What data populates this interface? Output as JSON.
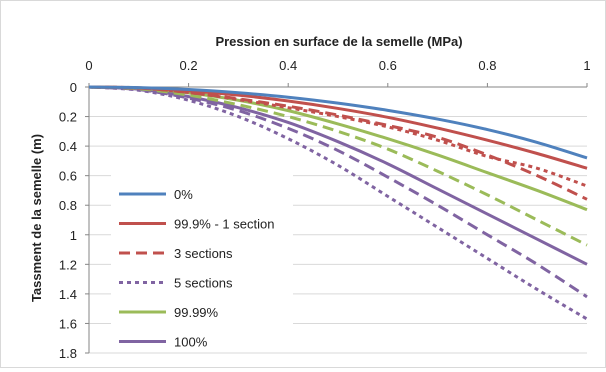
{
  "chart_data": {
    "type": "line",
    "title": "",
    "xlabel": "Pression en surface de la semelle (MPa)",
    "ylabel": "Tassment de la semelle (m)",
    "x_axis_position": "top",
    "y_axis_inverted": true,
    "xlim": [
      0,
      1
    ],
    "ylim": [
      0,
      1.8
    ],
    "x_ticks": [
      0,
      0.2,
      0.4,
      0.6,
      0.8,
      1
    ],
    "x_tick_labels": [
      "0",
      "0.2",
      "0.4",
      "0.6",
      "0.8",
      "1"
    ],
    "y_ticks": [
      0,
      0.2,
      0.4,
      0.6,
      0.8,
      1,
      1.2,
      1.4,
      1.6,
      1.8
    ],
    "y_tick_labels": [
      "0",
      "0.2",
      "0.4",
      "0.6",
      "0.8",
      "1",
      "1.2",
      "1.4",
      "1.6",
      "1.8"
    ],
    "grid": "horizontal",
    "legend_position": "bottom-left",
    "x": [
      0,
      0.1,
      0.2,
      0.3,
      0.4,
      0.5,
      0.6,
      0.7,
      0.8,
      0.9,
      1.0
    ],
    "series": [
      {
        "name": "0%",
        "color": "#4f81bd",
        "dash": "solid",
        "values": [
          0,
          0.004,
          0.017,
          0.039,
          0.069,
          0.109,
          0.158,
          0.217,
          0.288,
          0.375,
          0.48
        ]
      },
      {
        "name": "99.9% - 1 section",
        "color": "#c0504d",
        "dash": "solid",
        "values": [
          0,
          0.005,
          0.026,
          0.055,
          0.095,
          0.145,
          0.205,
          0.278,
          0.36,
          0.45,
          0.55
        ]
      },
      {
        "name": "3 sections",
        "color": "#c0504d",
        "dash": "dashed",
        "values": [
          0,
          0.007,
          0.037,
          0.08,
          0.13,
          0.19,
          0.26,
          0.34,
          0.46,
          0.6,
          0.76
        ]
      },
      {
        "name": "5 sections",
        "color": "#8064a2",
        "dash": "dotted",
        "values": [
          0,
          0.022,
          0.09,
          0.2,
          0.35,
          0.53,
          0.74,
          0.95,
          1.16,
          1.37,
          1.57
        ]
      },
      {
        "name": "99.99%",
        "color": "#9bbb59",
        "dash": "solid",
        "values": [
          0,
          0.008,
          0.04,
          0.09,
          0.16,
          0.25,
          0.35,
          0.46,
          0.58,
          0.7,
          0.83
        ]
      },
      {
        "name": "100%",
        "color": "#8064a2",
        "dash": "solid",
        "values": [
          0,
          0.015,
          0.065,
          0.14,
          0.24,
          0.37,
          0.52,
          0.69,
          0.86,
          1.03,
          1.2
        ]
      }
    ],
    "unlabeled_series": [
      {
        "color": "#c0504d",
        "dash": "dotted",
        "values": [
          0,
          0.007,
          0.037,
          0.085,
          0.14,
          0.2,
          0.27,
          0.36,
          0.47,
          0.55,
          0.67
        ]
      },
      {
        "color": "#9bbb59",
        "dash": "dashed",
        "values": [
          0,
          0.012,
          0.055,
          0.12,
          0.2,
          0.3,
          0.42,
          0.57,
          0.73,
          0.9,
          1.07
        ]
      },
      {
        "color": "#8064a2",
        "dash": "dashed",
        "values": [
          0,
          0.018,
          0.075,
          0.16,
          0.28,
          0.43,
          0.61,
          0.8,
          1.0,
          1.2,
          1.42
        ]
      }
    ]
  }
}
